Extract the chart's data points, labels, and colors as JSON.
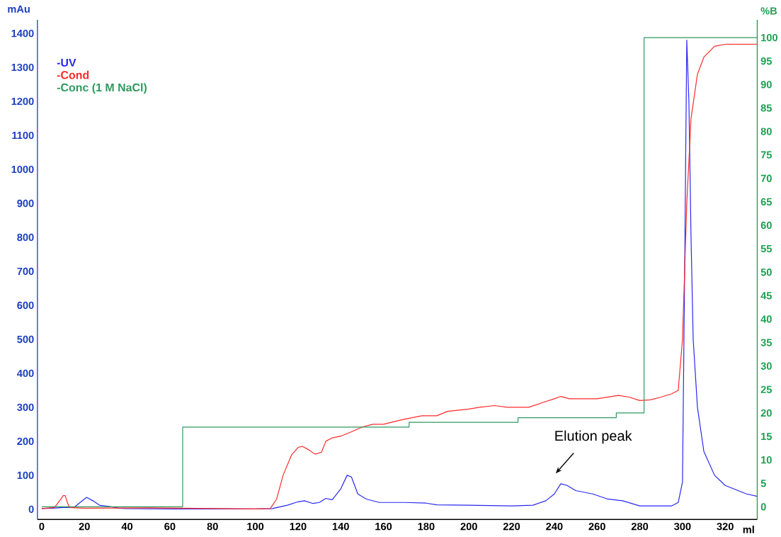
{
  "chart_data": {
    "type": "line",
    "xlabel": "ml",
    "ylabel": "mAu",
    "y2label": "%B",
    "xlim": [
      -2,
      335
    ],
    "ylim": [
      -30,
      1440
    ],
    "y2lim": [
      -2.7,
      103.8
    ],
    "xticks": [
      0,
      20,
      40,
      60,
      80,
      100,
      120,
      140,
      160,
      180,
      200,
      220,
      240,
      260,
      280,
      300,
      320
    ],
    "yticks": [
      0,
      100,
      200,
      300,
      400,
      500,
      600,
      700,
      800,
      900,
      1000,
      1100,
      1200,
      1300,
      1400
    ],
    "y2ticks": [
      0,
      5,
      10,
      15,
      20,
      25,
      30,
      35,
      40,
      45,
      50,
      55,
      60,
      65,
      70,
      75,
      80,
      85,
      90,
      95,
      100
    ],
    "legend": "top left",
    "series": [
      {
        "name": "-UV",
        "color": "#2828f0",
        "x": [
          0,
          5,
          10,
          15,
          18,
          21,
          24,
          27,
          32,
          36,
          40,
          60,
          100,
          108,
          115,
          120,
          123,
          127,
          130,
          133,
          136,
          140,
          143,
          145,
          148,
          152,
          158,
          170,
          180,
          185,
          200,
          220,
          230,
          236,
          240,
          243,
          246,
          250,
          258,
          265,
          272,
          280,
          295,
          298,
          300,
          301,
          302,
          303,
          304,
          305,
          307,
          310,
          315,
          320,
          330,
          335
        ],
        "values": [
          2,
          3,
          5,
          5,
          20,
          35,
          25,
          12,
          8,
          3,
          2,
          1,
          1,
          2,
          12,
          22,
          25,
          17,
          20,
          32,
          28,
          60,
          100,
          95,
          45,
          30,
          20,
          20,
          18,
          13,
          12,
          10,
          12,
          25,
          45,
          75,
          70,
          55,
          45,
          30,
          25,
          10,
          10,
          20,
          80,
          700,
          1380,
          1200,
          800,
          500,
          300,
          170,
          100,
          70,
          45,
          38
        ]
      },
      {
        "name": "-Cond",
        "color": "#ff2a2a",
        "x": [
          0,
          6,
          9,
          10,
          11,
          12,
          13,
          20,
          50,
          100,
          107,
          110,
          113,
          117,
          120,
          122,
          125,
          128,
          131,
          133,
          136,
          140,
          145,
          150,
          155,
          160,
          165,
          170,
          178,
          185,
          190,
          200,
          205,
          212,
          218,
          228,
          235,
          240,
          243,
          247,
          260,
          270,
          275,
          280,
          285,
          290,
          295,
          298,
          300,
          302,
          304,
          307,
          310,
          315,
          320,
          335
        ],
        "values": [
          2,
          5,
          30,
          40,
          40,
          20,
          5,
          3,
          4,
          1,
          2,
          30,
          100,
          160,
          182,
          185,
          175,
          162,
          168,
          200,
          210,
          215,
          228,
          242,
          250,
          250,
          258,
          265,
          275,
          275,
          288,
          295,
          300,
          305,
          300,
          300,
          315,
          325,
          332,
          325,
          325,
          335,
          330,
          320,
          322,
          330,
          340,
          350,
          500,
          900,
          1150,
          1280,
          1330,
          1362,
          1368,
          1368
        ]
      },
      {
        "name": "-Conc (1 M NaCl)",
        "color": "#2e9a5e",
        "type": "step",
        "axis": "y2",
        "x": [
          0,
          66,
          172,
          223,
          269,
          282,
          335
        ],
        "values": [
          0,
          17,
          18,
          19,
          20,
          100,
          100
        ]
      }
    ],
    "annotations": [
      "Elution peak"
    ]
  }
}
